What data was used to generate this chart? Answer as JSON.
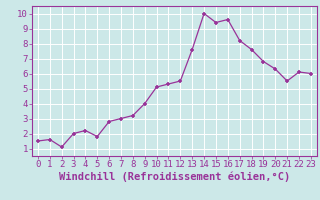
{
  "x": [
    0,
    1,
    2,
    3,
    4,
    5,
    6,
    7,
    8,
    9,
    10,
    11,
    12,
    13,
    14,
    15,
    16,
    17,
    18,
    19,
    20,
    21,
    22,
    23
  ],
  "y": [
    1.5,
    1.6,
    1.1,
    2.0,
    2.2,
    1.8,
    2.8,
    3.0,
    3.2,
    4.0,
    5.1,
    5.3,
    5.5,
    7.6,
    10.0,
    9.4,
    9.6,
    8.2,
    7.6,
    6.8,
    6.3,
    5.5,
    6.1,
    6.0
  ],
  "xlabel": "Windchill (Refroidissement éolien,°C)",
  "xlim": [
    -0.5,
    23.5
  ],
  "ylim": [
    0.5,
    10.5
  ],
  "line_color": "#993399",
  "marker_color": "#993399",
  "bg_color": "#cce8e8",
  "grid_color": "#aadddd",
  "xticks": [
    0,
    1,
    2,
    3,
    4,
    5,
    6,
    7,
    8,
    9,
    10,
    11,
    12,
    13,
    14,
    15,
    16,
    17,
    18,
    19,
    20,
    21,
    22,
    23
  ],
  "yticks": [
    1,
    2,
    3,
    4,
    5,
    6,
    7,
    8,
    9,
    10
  ],
  "tick_fontsize": 6.5,
  "xlabel_fontsize": 7.5,
  "label_color": "#993399"
}
